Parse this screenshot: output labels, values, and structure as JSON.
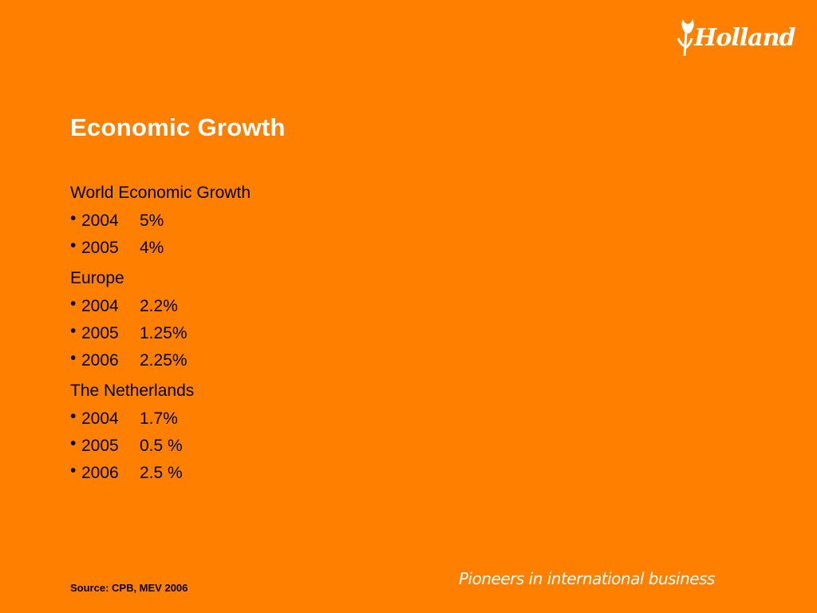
{
  "logo": {
    "text": "Holland"
  },
  "title": "Economic Growth",
  "sections": [
    {
      "heading": "World Economic Growth",
      "items": [
        {
          "year": "2004",
          "value": "5%"
        },
        {
          "year": "2005",
          "value": "4%"
        }
      ]
    },
    {
      "heading": "Europe",
      "items": [
        {
          "year": "2004",
          "value": "2.2%"
        },
        {
          "year": "2005",
          "value": "1.25%"
        },
        {
          "year": "2006",
          "value": "2.25%"
        }
      ]
    },
    {
      "heading": "The Netherlands",
      "items": [
        {
          "year": "2004",
          "value": "1.7%"
        },
        {
          "year": "2005",
          "value": "0.5 %"
        },
        {
          "year": "2006",
          "value": "2.5 %"
        }
      ]
    }
  ],
  "bullet": "•",
  "source": "Source: CPB, MEV 2006",
  "tagline": "Pioneers in international business",
  "colors": {
    "background": "#ff8000",
    "title": "#ffffff",
    "text": "#000000"
  }
}
